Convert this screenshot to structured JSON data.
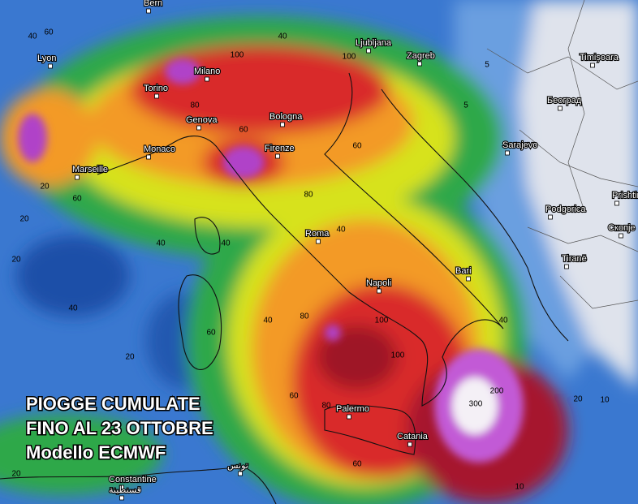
{
  "overlay": {
    "lines": [
      "PIOGGE CUMULATE",
      "FINO AL 23 OTTOBRE",
      "Modello ECMWF"
    ]
  },
  "cities": [
    "Bern",
    "Lyon",
    "Milano",
    "Torino",
    "Genova",
    "Bologna",
    "Monaco",
    "Marseille",
    "Firenze",
    "Ljubljana",
    "Zagreb",
    "Timișoara",
    "Београд",
    "Sarajevo",
    "Podgorica",
    "Prishtine",
    "Скопје",
    "Tiranë",
    "Roma",
    "Napoli",
    "Bari",
    "Palermo",
    "Catania",
    "Constantine",
    "تونس",
    "قسنطينة"
  ],
  "contour_labels": [
    "40",
    "60",
    "100",
    "80",
    "40",
    "60",
    "100",
    "80",
    "60",
    "40",
    "20",
    "40",
    "20",
    "5",
    "10",
    "5",
    "40",
    "60",
    "80",
    "100",
    "100",
    "80",
    "60",
    "200",
    "300",
    "40",
    "20",
    "10",
    "20",
    "40",
    "60",
    "40",
    "20",
    "60",
    "20"
  ]
}
